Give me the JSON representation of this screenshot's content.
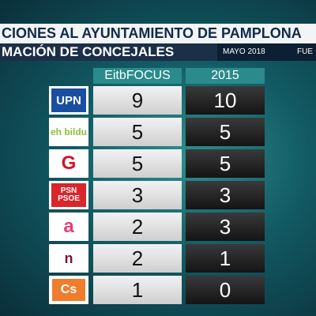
{
  "header": {
    "title": "CIONES AL AYUNTAMIENTO DE PAMPLONA",
    "subtitle": "MACIÓN DE CONCEJALES",
    "date": "MAYO 2018",
    "source": "FUE"
  },
  "table": {
    "columns": [
      "EitbFOCUS",
      "2015"
    ],
    "rows": [
      {
        "party": "UPN",
        "focus": 9,
        "previous": 10
      },
      {
        "party": "eh bildu",
        "focus": 5,
        "previous": 5
      },
      {
        "party": "G",
        "focus": 5,
        "previous": 5
      },
      {
        "party": "PSN PSOE",
        "focus": 3,
        "previous": 3
      },
      {
        "party": "a",
        "focus": 2,
        "previous": 3
      },
      {
        "party": "n",
        "focus": 2,
        "previous": 1
      },
      {
        "party": "Cs",
        "focus": 1,
        "previous": 0
      }
    ]
  }
}
